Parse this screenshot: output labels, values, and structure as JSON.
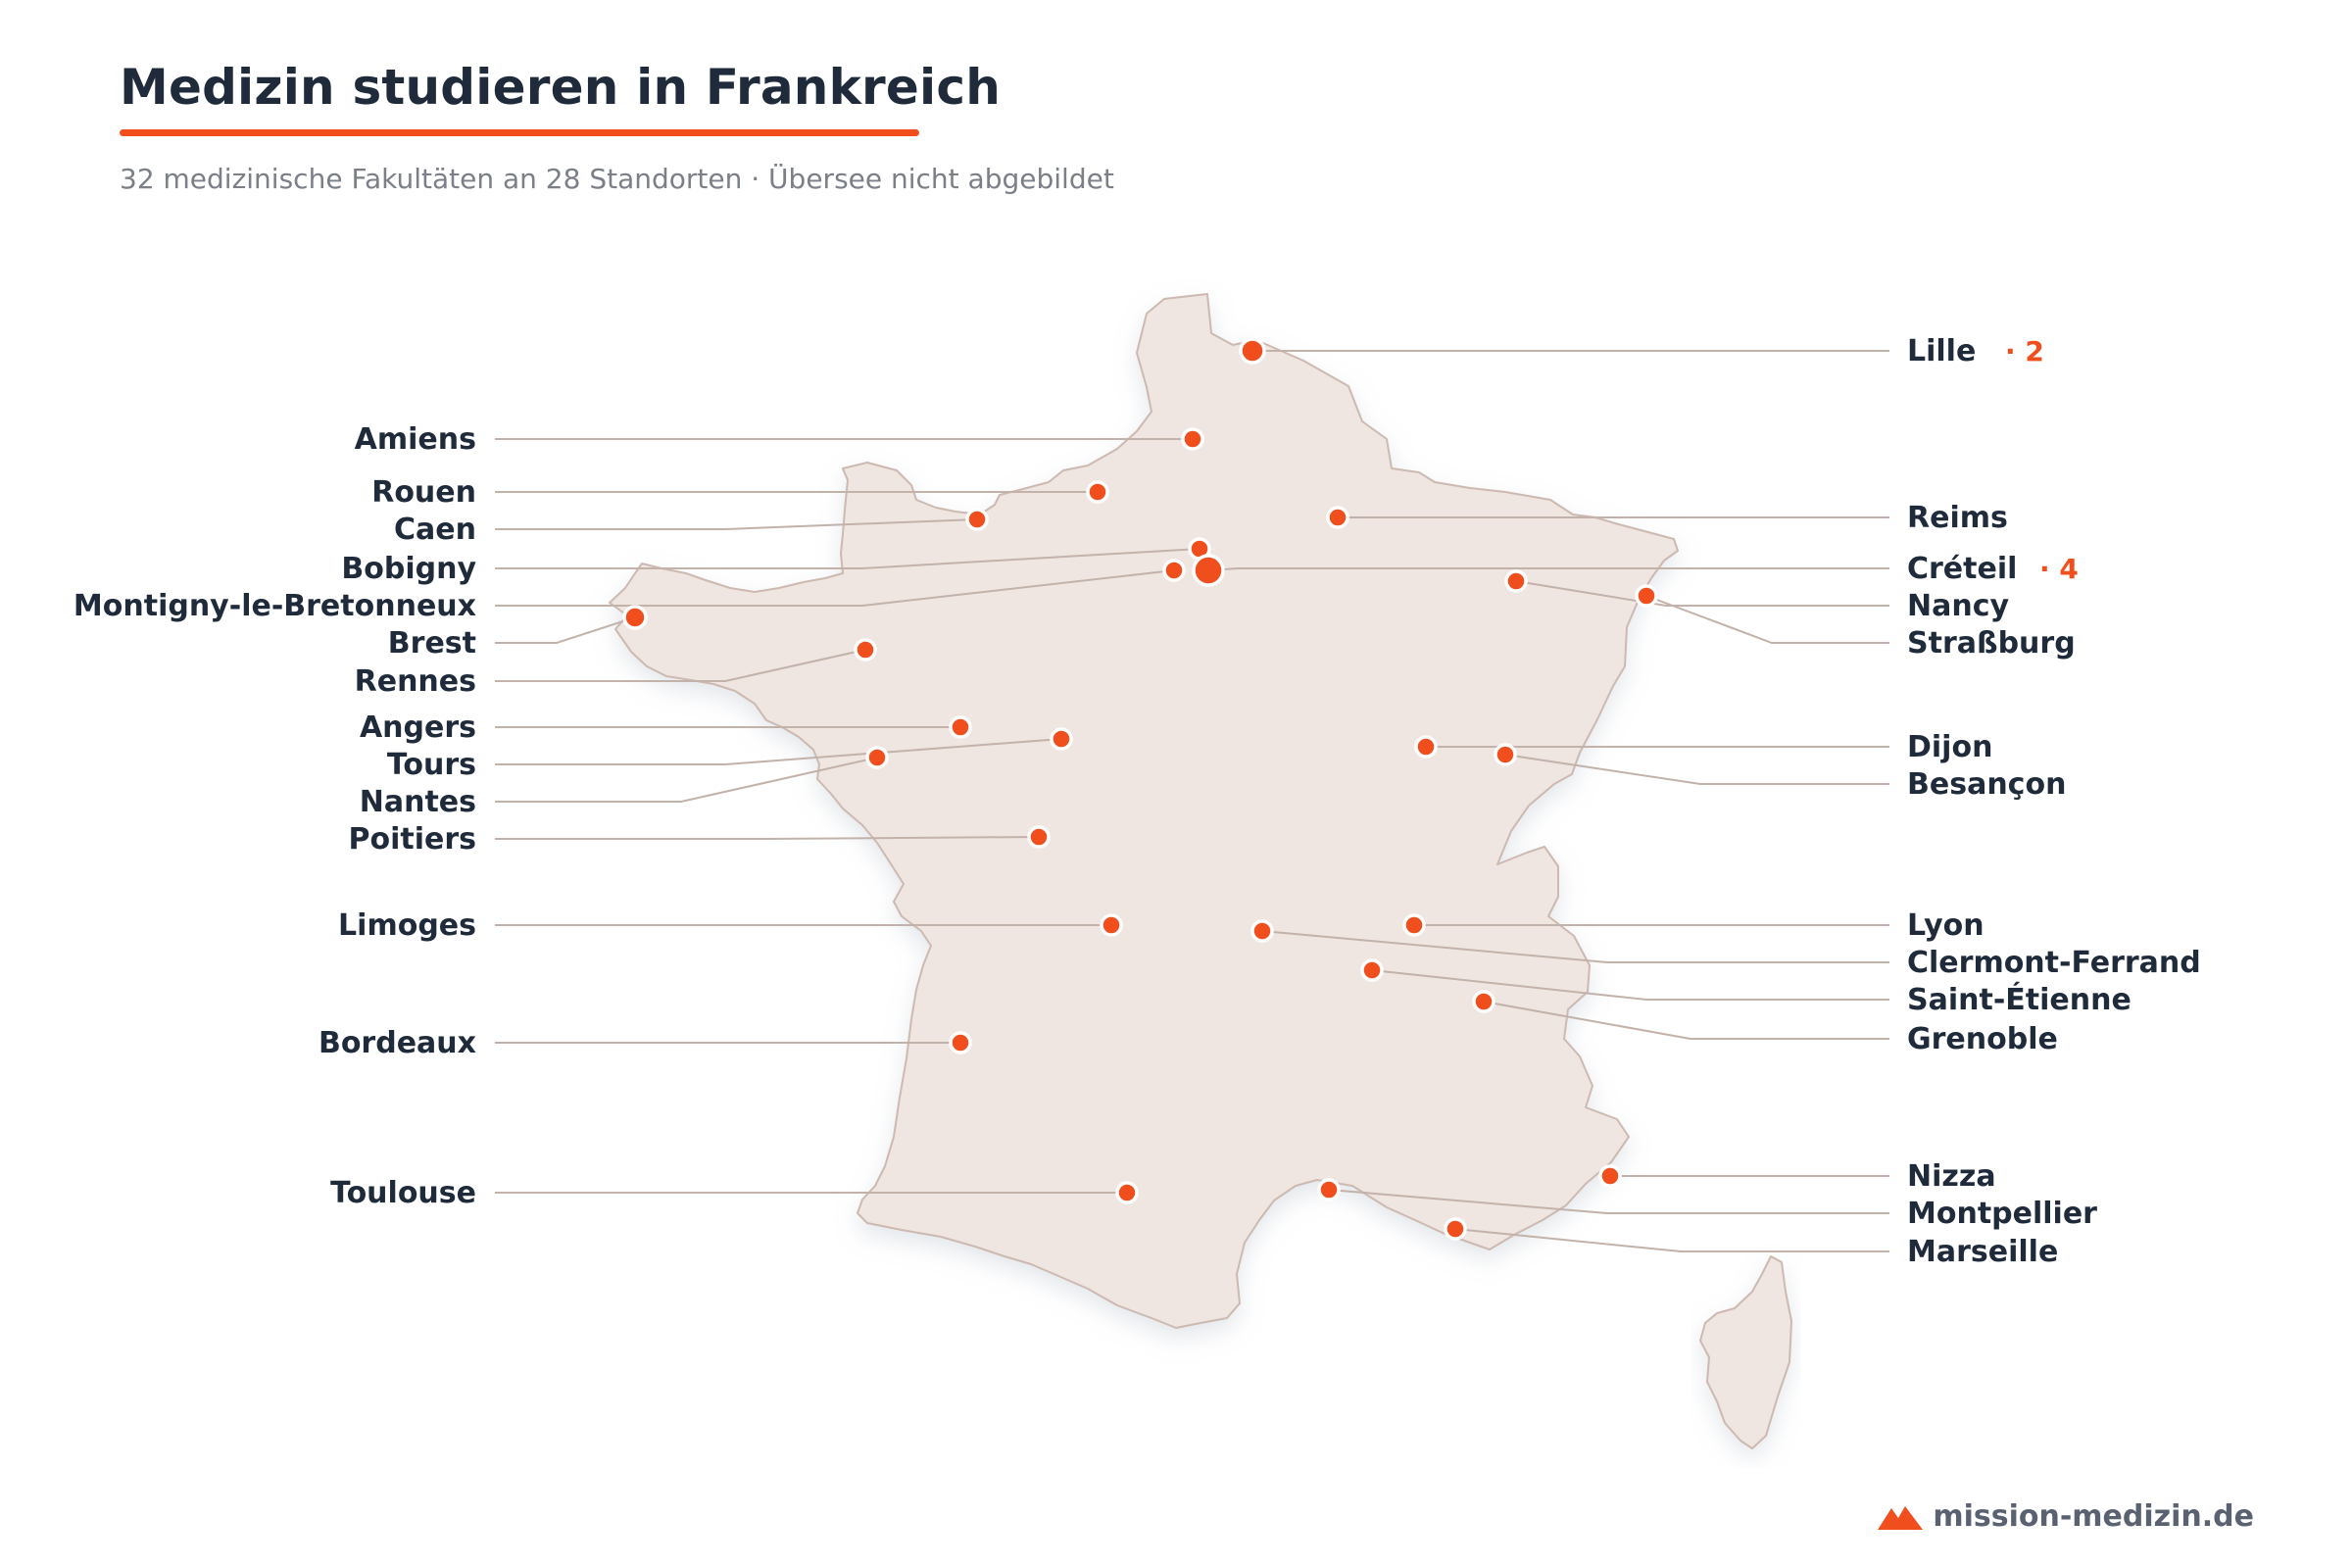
{
  "header": {
    "title": "Medizin studieren in Frankreich",
    "subtitle": "32 medizinische Fakultäten an 28 Standorten · Übersee nicht abgebildet"
  },
  "footer": {
    "brand_text": "mission-medizin.de",
    "brand_icon": "mountain-icon"
  },
  "colors": {
    "accent": "#f04e1d",
    "land": "#efe6e2",
    "land_border": "#cdb9b0",
    "leader": "#c2b2aa",
    "text": "#1f2a3a"
  },
  "cities": [
    {
      "id": "lille",
      "name": "Lille",
      "count": "· 2",
      "side": "right"
    },
    {
      "id": "amiens",
      "name": "Amiens",
      "side": "left"
    },
    {
      "id": "rouen",
      "name": "Rouen",
      "side": "left"
    },
    {
      "id": "caen",
      "name": "Caen",
      "side": "left"
    },
    {
      "id": "reims",
      "name": "Reims",
      "side": "right"
    },
    {
      "id": "bobigny",
      "name": "Bobigny",
      "side": "left"
    },
    {
      "id": "creteil",
      "name": "Créteil",
      "count": "· 4",
      "side": "right"
    },
    {
      "id": "montigny",
      "name": "Montigny-le-Bretonneux",
      "side": "left"
    },
    {
      "id": "nancy",
      "name": "Nancy",
      "side": "right"
    },
    {
      "id": "brest",
      "name": "Brest",
      "side": "left"
    },
    {
      "id": "strassburg",
      "name": "Straßburg",
      "side": "right"
    },
    {
      "id": "rennes",
      "name": "Rennes",
      "side": "left"
    },
    {
      "id": "angers",
      "name": "Angers",
      "side": "left"
    },
    {
      "id": "dijon",
      "name": "Dijon",
      "side": "right"
    },
    {
      "id": "tours",
      "name": "Tours",
      "side": "left"
    },
    {
      "id": "besancon",
      "name": "Besançon",
      "side": "right"
    },
    {
      "id": "nantes",
      "name": "Nantes",
      "side": "left"
    },
    {
      "id": "poitiers",
      "name": "Poitiers",
      "side": "left"
    },
    {
      "id": "limoges",
      "name": "Limoges",
      "side": "left"
    },
    {
      "id": "lyon",
      "name": "Lyon",
      "side": "right"
    },
    {
      "id": "clermont",
      "name": "Clermont-Ferrand",
      "side": "right"
    },
    {
      "id": "stetienne",
      "name": "Saint-Étienne",
      "side": "right"
    },
    {
      "id": "grenoble",
      "name": "Grenoble",
      "side": "right"
    },
    {
      "id": "bordeaux",
      "name": "Bordeaux",
      "side": "left"
    },
    {
      "id": "nizza",
      "name": "Nizza",
      "side": "right"
    },
    {
      "id": "toulouse",
      "name": "Toulouse",
      "side": "left"
    },
    {
      "id": "montpellier",
      "name": "Montpellier",
      "side": "right"
    },
    {
      "id": "marseille",
      "name": "Marseille",
      "side": "right"
    }
  ]
}
